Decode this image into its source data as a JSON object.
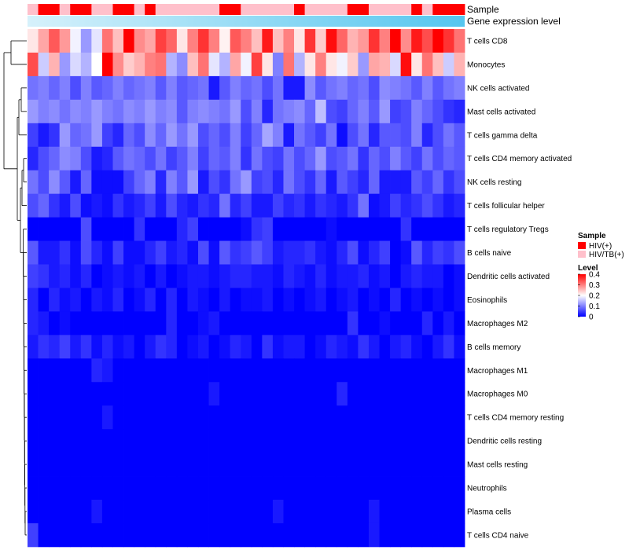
{
  "chart_data": {
    "type": "heatmap",
    "title": "",
    "annotation_labels": {
      "sample": "Sample",
      "gene_level": "Gene expression level"
    },
    "sample_groups": [
      1,
      0,
      0,
      1,
      0,
      0,
      1,
      1,
      0,
      0,
      1,
      0,
      1,
      1,
      1,
      1,
      1,
      1,
      0,
      0,
      1,
      1,
      1,
      1,
      1,
      0,
      1,
      1,
      1,
      1,
      0,
      0,
      1,
      1,
      1,
      1,
      0,
      1,
      0,
      0,
      0
    ],
    "rows": [
      {
        "name": "T cells CD8",
        "values": [
          0.22,
          0.27,
          0.33,
          0.28,
          0.19,
          0.12,
          0.18,
          0.31,
          0.25,
          0.4,
          0.29,
          0.27,
          0.35,
          0.32,
          0.22,
          0.3,
          0.36,
          0.3,
          0.21,
          0.33,
          0.3,
          0.25,
          0.38,
          0.25,
          0.3,
          0.22,
          0.36,
          0.24,
          0.39,
          0.32,
          0.26,
          0.28,
          0.36,
          0.3,
          0.42,
          0.29,
          0.38,
          0.34,
          0.4,
          0.36,
          0.31
        ]
      },
      {
        "name": "Monocytes",
        "values": [
          0.34,
          0.16,
          0.26,
          0.12,
          0.17,
          0.14,
          0.2,
          0.41,
          0.29,
          0.24,
          0.26,
          0.3,
          0.31,
          0.14,
          0.11,
          0.25,
          0.31,
          0.18,
          0.14,
          0.27,
          0.19,
          0.35,
          0.22,
          0.1,
          0.31,
          0.14,
          0.22,
          0.3,
          0.22,
          0.19,
          0.24,
          0.12,
          0.27,
          0.26,
          0.17,
          0.39,
          0.22,
          0.31,
          0.25,
          0.16,
          0.26
        ]
      },
      {
        "name": "NK cells activated",
        "values": [
          0.09,
          0.1,
          0.08,
          0.1,
          0.06,
          0.1,
          0.07,
          0.08,
          0.1,
          0.08,
          0.09,
          0.1,
          0.07,
          0.1,
          0.07,
          0.08,
          0.09,
          0.02,
          0.07,
          0.1,
          0.08,
          0.09,
          0.06,
          0.09,
          0.02,
          0.02,
          0.11,
          0.07,
          0.09,
          0.1,
          0.08,
          0.09,
          0.06,
          0.11,
          0.1,
          0.09,
          0.07,
          0.1,
          0.07,
          0.09,
          0.1
        ]
      },
      {
        "name": "Mast cells activated",
        "values": [
          0.12,
          0.1,
          0.11,
          0.09,
          0.11,
          0.1,
          0.12,
          0.1,
          0.09,
          0.11,
          0.1,
          0.12,
          0.1,
          0.11,
          0.07,
          0.1,
          0.11,
          0.1,
          0.09,
          0.12,
          0.06,
          0.1,
          0.03,
          0.09,
          0.1,
          0.11,
          0.08,
          0.15,
          0.06,
          0.05,
          0.08,
          0.1,
          0.07,
          0.12,
          0.05,
          0.06,
          0.1,
          0.08,
          0.06,
          0.04,
          0.03
        ]
      },
      {
        "name": "T cells gamma delta",
        "values": [
          0.05,
          0.02,
          0.04,
          0.12,
          0.08,
          0.09,
          0.12,
          0.05,
          0.03,
          0.08,
          0.06,
          0.11,
          0.08,
          0.12,
          0.09,
          0.12,
          0.06,
          0.08,
          0.06,
          0.1,
          0.05,
          0.08,
          0.13,
          0.1,
          0.02,
          0.09,
          0.07,
          0.05,
          0.09,
          0.01,
          0.06,
          0.09,
          0.03,
          0.07,
          0.07,
          0.06,
          0.1,
          0.03,
          0.06,
          0.09,
          0.07
        ]
      },
      {
        "name": "T cells CD4 memory activated",
        "values": [
          0.03,
          0.06,
          0.08,
          0.11,
          0.1,
          0.06,
          0.02,
          0.03,
          0.07,
          0.09,
          0.08,
          0.06,
          0.09,
          0.05,
          0.07,
          0.1,
          0.05,
          0.08,
          0.07,
          0.1,
          0.04,
          0.09,
          0.06,
          0.05,
          0.09,
          0.06,
          0.08,
          0.12,
          0.06,
          0.07,
          0.09,
          0.04,
          0.08,
          0.06,
          0.1,
          0.07,
          0.05,
          0.09,
          0.06,
          0.08,
          0.07
        ]
      },
      {
        "name": "NK cells resting",
        "values": [
          0.09,
          0.06,
          0.11,
          0.07,
          0.02,
          0.08,
          0.01,
          0.01,
          0.01,
          0.05,
          0.08,
          0.1,
          0.03,
          0.1,
          0.07,
          0.12,
          0.02,
          0.06,
          0.04,
          0.09,
          0.12,
          0.05,
          0.06,
          0.03,
          0.09,
          0.06,
          0.04,
          0.08,
          0.02,
          0.07,
          0.05,
          0.03,
          0.08,
          0.02,
          0.02,
          0.02,
          0.07,
          0.05,
          0.08,
          0.04,
          0.06
        ]
      },
      {
        "name": "T cells follicular helper",
        "values": [
          0.06,
          0.08,
          0.04,
          0.02,
          0.06,
          0.01,
          0.02,
          0.01,
          0.04,
          0.02,
          0.03,
          0.05,
          0.02,
          0.06,
          0.03,
          0.02,
          0.04,
          0.03,
          0.09,
          0.03,
          0.05,
          0.02,
          0.02,
          0.05,
          0.03,
          0.04,
          0.02,
          0.04,
          0.03,
          0.02,
          0.04,
          0.09,
          0.01,
          0.02,
          0.05,
          0.03,
          0.04,
          0.06,
          0.04,
          0.02,
          0.03
        ]
      },
      {
        "name": "T cells regulatory  Tregs",
        "values": [
          0.0,
          0.0,
          0.0,
          0.0,
          0.0,
          0.06,
          0.0,
          0.0,
          0.0,
          0.0,
          0.04,
          0.0,
          0.0,
          0.0,
          0.03,
          0.05,
          0.0,
          0.0,
          0.0,
          0.0,
          0.01,
          0.04,
          0.05,
          0.0,
          0.0,
          0.0,
          0.0,
          0.0,
          0.01,
          0.0,
          0.0,
          0.0,
          0.0,
          0.0,
          0.0,
          0.04,
          0.0,
          0.0,
          0.0,
          0.0,
          0.0
        ]
      },
      {
        "name": "B cells naive",
        "values": [
          0.07,
          0.02,
          0.02,
          0.04,
          0.01,
          0.06,
          0.03,
          0.01,
          0.05,
          0.01,
          0.01,
          0.03,
          0.05,
          0.02,
          0.03,
          0.01,
          0.06,
          0.01,
          0.07,
          0.04,
          0.05,
          0.07,
          0.05,
          0.02,
          0.03,
          0.03,
          0.04,
          0.02,
          0.01,
          0.03,
          0.06,
          0.01,
          0.03,
          0.05,
          0.0,
          0.01,
          0.07,
          0.03,
          0.05,
          0.04,
          0.06
        ]
      },
      {
        "name": "Dendritic cells activated",
        "values": [
          0.05,
          0.04,
          0.02,
          0.03,
          0.01,
          0.03,
          0.0,
          0.01,
          0.02,
          0.01,
          0.02,
          0.0,
          0.02,
          0.0,
          0.01,
          0.02,
          0.02,
          0.01,
          0.02,
          0.03,
          0.03,
          0.02,
          0.02,
          0.01,
          0.03,
          0.02,
          0.01,
          0.03,
          0.01,
          0.02,
          0.02,
          0.03,
          0.01,
          0.02,
          0.0,
          0.02,
          0.03,
          0.02,
          0.02,
          0.0,
          0.01
        ]
      },
      {
        "name": "Eosinophils",
        "values": [
          0.03,
          0.0,
          0.03,
          0.01,
          0.02,
          0.0,
          0.02,
          0.01,
          0.03,
          0.0,
          0.01,
          0.03,
          0.0,
          0.03,
          0.0,
          0.02,
          0.01,
          0.0,
          0.02,
          0.0,
          0.01,
          0.01,
          0.02,
          0.0,
          0.01,
          0.0,
          0.01,
          0.02,
          0.0,
          0.01,
          0.02,
          0.0,
          0.01,
          0.0,
          0.03,
          0.0,
          0.01,
          0.0,
          0.01,
          0.0,
          0.01
        ]
      },
      {
        "name": "Macrophages M2",
        "values": [
          0.03,
          0.02,
          0.0,
          0.01,
          0.0,
          0.0,
          0.0,
          0.0,
          0.0,
          0.0,
          0.0,
          0.0,
          0.0,
          0.03,
          0.0,
          0.0,
          0.01,
          0.02,
          0.0,
          0.0,
          0.0,
          0.0,
          0.0,
          0.0,
          0.0,
          0.0,
          0.0,
          0.0,
          0.0,
          0.0,
          0.04,
          0.0,
          0.0,
          0.01,
          0.0,
          0.0,
          0.0,
          0.03,
          0.0,
          0.02,
          0.0
        ]
      },
      {
        "name": "B cells memory",
        "values": [
          0.02,
          0.04,
          0.03,
          0.05,
          0.02,
          0.04,
          0.01,
          0.03,
          0.01,
          0.02,
          0.0,
          0.02,
          0.04,
          0.03,
          0.0,
          0.01,
          0.02,
          0.0,
          0.01,
          0.03,
          0.02,
          0.0,
          0.04,
          0.01,
          0.02,
          0.02,
          0.0,
          0.01,
          0.03,
          0.02,
          0.01,
          0.04,
          0.02,
          0.0,
          0.02,
          0.03,
          0.01,
          0.0,
          0.02,
          0.04,
          0.01
        ]
      },
      {
        "name": "Macrophages M1",
        "values": [
          0.0,
          0.0,
          0.0,
          0.0,
          0.0,
          0.0,
          0.03,
          0.02,
          0.0,
          0.0,
          0.0,
          0.0,
          0.0,
          0.0,
          0.0,
          0.0,
          0.0,
          0.0,
          0.0,
          0.0,
          0.0,
          0.0,
          0.0,
          0.0,
          0.0,
          0.0,
          0.0,
          0.0,
          0.0,
          0.0,
          0.0,
          0.0,
          0.0,
          0.0,
          0.0,
          0.0,
          0.0,
          0.0,
          0.0,
          0.0,
          0.0
        ]
      },
      {
        "name": "Macrophages M0",
        "values": [
          0.0,
          0.0,
          0.0,
          0.0,
          0.0,
          0.0,
          0.0,
          0.0,
          0.0,
          0.0,
          0.0,
          0.0,
          0.0,
          0.0,
          0.0,
          0.0,
          0.0,
          0.02,
          0.0,
          0.0,
          0.0,
          0.0,
          0.0,
          0.0,
          0.0,
          0.0,
          0.0,
          0.0,
          0.0,
          0.03,
          0.0,
          0.0,
          0.0,
          0.0,
          0.0,
          0.0,
          0.0,
          0.0,
          0.0,
          0.0,
          0.0
        ]
      },
      {
        "name": "T cells CD4 memory resting",
        "values": [
          0.0,
          0.0,
          0.0,
          0.0,
          0.0,
          0.0,
          0.0,
          0.02,
          0.0,
          0.0,
          0.0,
          0.0,
          0.0,
          0.0,
          0.0,
          0.0,
          0.0,
          0.0,
          0.0,
          0.0,
          0.0,
          0.0,
          0.0,
          0.0,
          0.0,
          0.0,
          0.0,
          0.0,
          0.0,
          0.0,
          0.0,
          0.0,
          0.0,
          0.0,
          0.0,
          0.0,
          0.0,
          0.0,
          0.0,
          0.0,
          0.0
        ]
      },
      {
        "name": "Dendritic cells resting",
        "values": [
          0.0,
          0.0,
          0.0,
          0.0,
          0.0,
          0.0,
          0.0,
          0.0,
          0.0,
          0.0,
          0.0,
          0.0,
          0.0,
          0.0,
          0.0,
          0.0,
          0.0,
          0.0,
          0.0,
          0.0,
          0.0,
          0.0,
          0.0,
          0.0,
          0.0,
          0.0,
          0.0,
          0.0,
          0.0,
          0.0,
          0.0,
          0.0,
          0.0,
          0.0,
          0.0,
          0.0,
          0.0,
          0.0,
          0.0,
          0.0,
          0.0
        ]
      },
      {
        "name": "Mast cells resting",
        "values": [
          0.0,
          0.0,
          0.0,
          0.0,
          0.0,
          0.0,
          0.0,
          0.0,
          0.0,
          0.0,
          0.0,
          0.0,
          0.0,
          0.0,
          0.0,
          0.0,
          0.0,
          0.0,
          0.0,
          0.0,
          0.0,
          0.0,
          0.0,
          0.0,
          0.0,
          0.0,
          0.0,
          0.0,
          0.0,
          0.0,
          0.0,
          0.0,
          0.0,
          0.0,
          0.0,
          0.0,
          0.0,
          0.0,
          0.0,
          0.0,
          0.0
        ]
      },
      {
        "name": "Neutrophils",
        "values": [
          0.0,
          0.0,
          0.0,
          0.0,
          0.0,
          0.0,
          0.0,
          0.0,
          0.0,
          0.0,
          0.0,
          0.0,
          0.0,
          0.0,
          0.0,
          0.0,
          0.0,
          0.0,
          0.0,
          0.0,
          0.0,
          0.0,
          0.0,
          0.0,
          0.0,
          0.0,
          0.0,
          0.0,
          0.0,
          0.0,
          0.0,
          0.0,
          0.0,
          0.0,
          0.0,
          0.0,
          0.0,
          0.0,
          0.0,
          0.0,
          0.0
        ]
      },
      {
        "name": "Plasma cells",
        "values": [
          0.0,
          0.0,
          0.0,
          0.0,
          0.0,
          0.0,
          0.02,
          0.0,
          0.0,
          0.0,
          0.0,
          0.0,
          0.0,
          0.0,
          0.0,
          0.0,
          0.0,
          0.0,
          0.0,
          0.0,
          0.0,
          0.0,
          0.0,
          0.02,
          0.0,
          0.0,
          0.0,
          0.0,
          0.0,
          0.0,
          0.0,
          0.0,
          0.02,
          0.0,
          0.0,
          0.0,
          0.0,
          0.0,
          0.0,
          0.0,
          0.0
        ]
      },
      {
        "name": "T cells CD4 naive",
        "values": [
          0.05,
          0.0,
          0.0,
          0.0,
          0.0,
          0.0,
          0.0,
          0.0,
          0.0,
          0.0,
          0.0,
          0.0,
          0.0,
          0.0,
          0.0,
          0.0,
          0.0,
          0.0,
          0.0,
          0.0,
          0.0,
          0.0,
          0.0,
          0.0,
          0.0,
          0.0,
          0.0,
          0.0,
          0.0,
          0.0,
          0.0,
          0.0,
          0.02,
          0.0,
          0.0,
          0.0,
          0.0,
          0.0,
          0.0,
          0.0,
          0.0
        ]
      }
    ],
    "legend": {
      "sample_title": "Sample",
      "groups": [
        {
          "label": "HIV(+)",
          "color": "#ff0000"
        },
        {
          "label": "HIV/TB(+)",
          "color": "#ffc0cb"
        }
      ],
      "level_title": "Level",
      "level_ticks": [
        0,
        0.1,
        0.2,
        0.3,
        0.4
      ],
      "level_range": [
        0,
        0.4
      ],
      "level_colors": [
        "#0000ff",
        "#ffffff",
        "#ff0000"
      ]
    }
  }
}
